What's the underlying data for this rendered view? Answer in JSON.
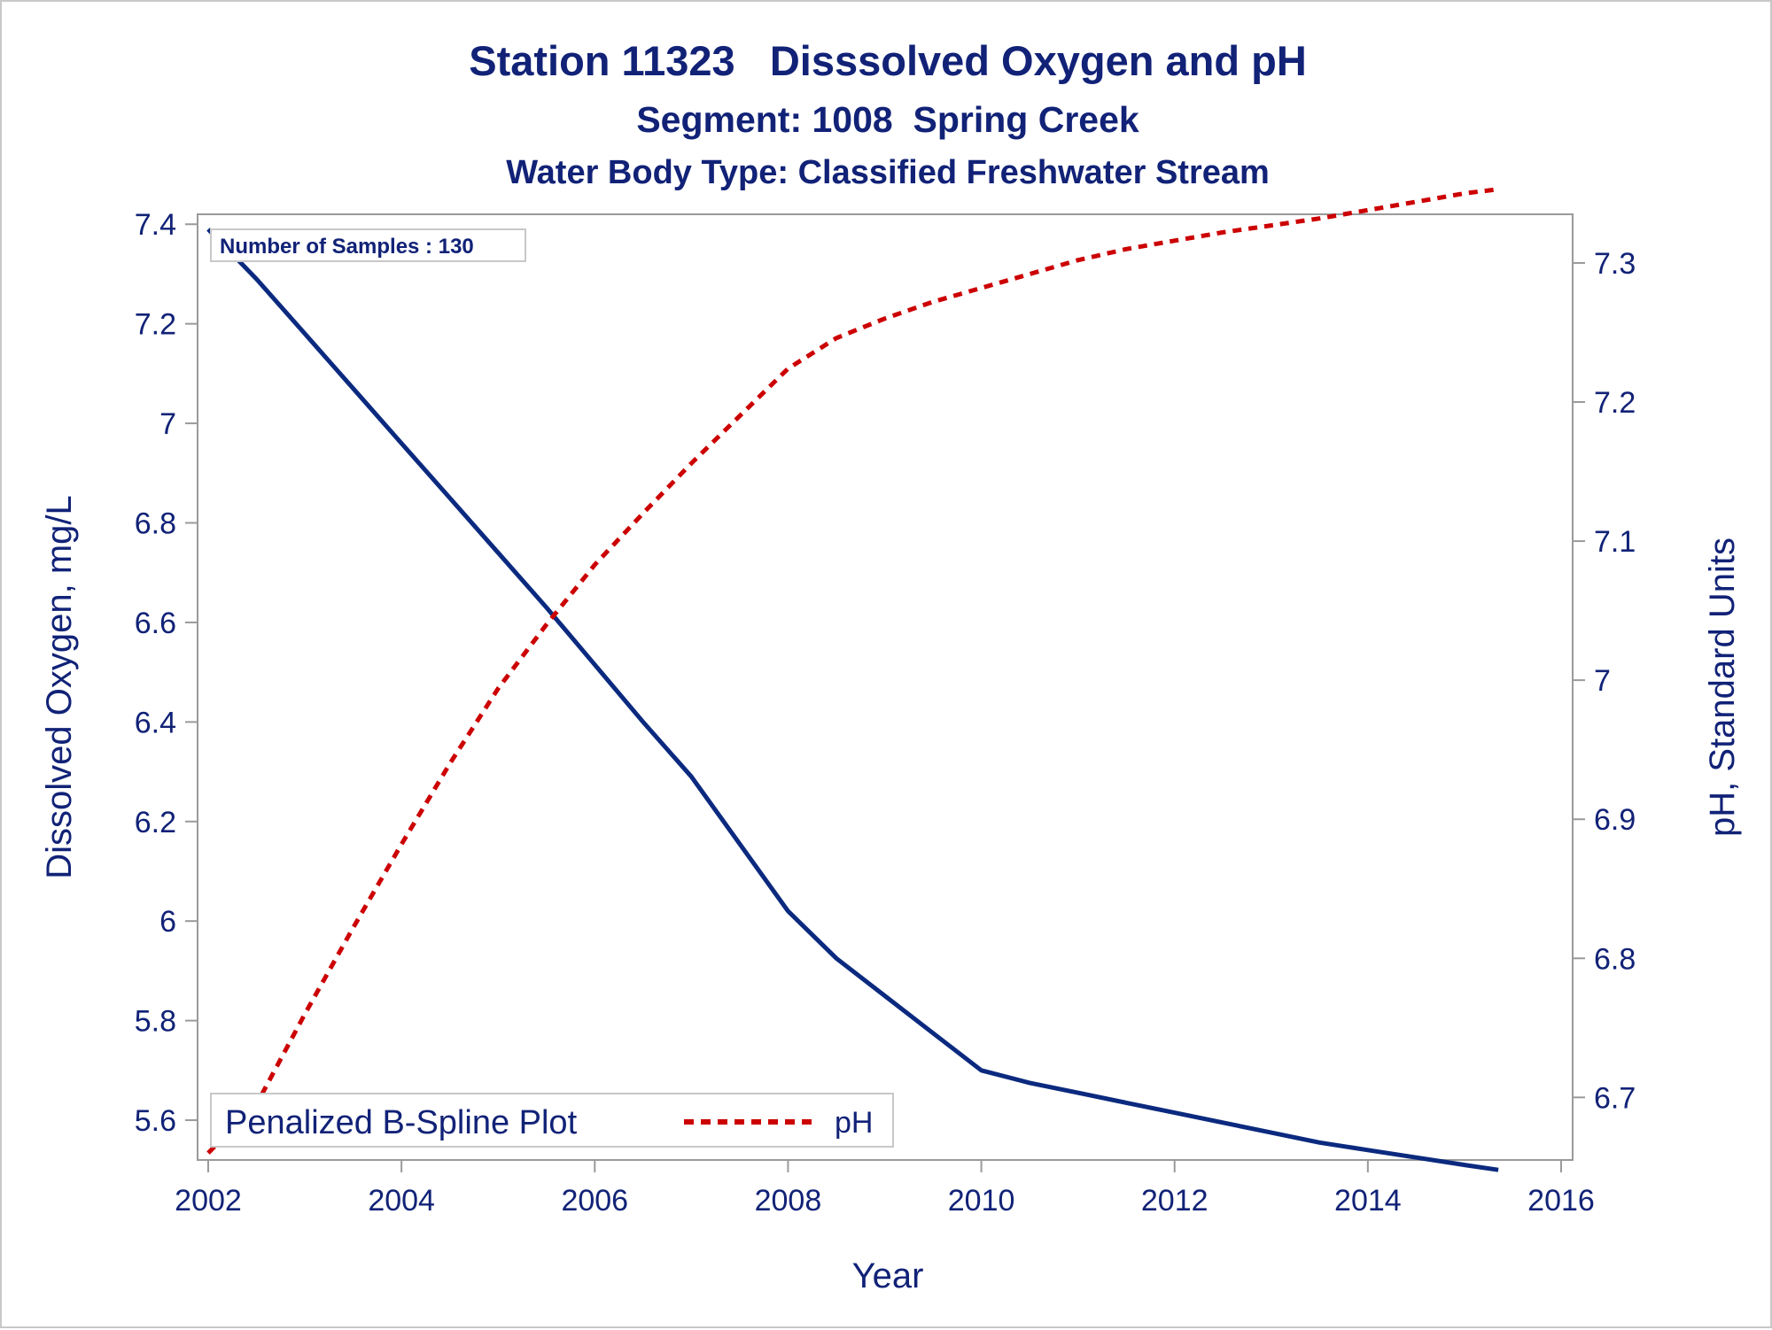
{
  "chart_data": {
    "type": "line",
    "title": "Station 11323   Disssolved Oxygen and pH",
    "subtitle": "Segment: 1008  Spring Creek",
    "subtitle2": "Water Body Type: Classified Freshwater Stream",
    "xlabel": "Year",
    "ylabel": "Dissolved Oxygen, mg/L",
    "y2label": "pH, Standard Units",
    "inset_label": "Number of Samples : 130",
    "legend_title": "Penalized B-Spline Plot",
    "legend_placement": "bottom-left",
    "grid": false,
    "xlim": [
      2002,
      2016
    ],
    "ylim": [
      5.52,
      7.42
    ],
    "y2lim": [
      6.655,
      7.335
    ],
    "x_ticks": [
      "2002",
      "2004",
      "2006",
      "2008",
      "2010",
      "2012",
      "2014",
      "2016"
    ],
    "y_ticks": [
      "5.6",
      "5.8",
      "6",
      "6.2",
      "6.4",
      "6.6",
      "6.8",
      "7",
      "7.2",
      "7.4"
    ],
    "y2_ticks": [
      "6.7",
      "6.8",
      "6.9",
      "7",
      "7.1",
      "7.2",
      "7.3"
    ],
    "series": [
      {
        "legend": false,
        "axis": "left",
        "color": "#0b2a7f",
        "style": "solid",
        "x": [
          2002.0,
          2002.5,
          2003.0,
          2003.5,
          2004.0,
          2004.5,
          2005.0,
          2005.5,
          2006.0,
          2006.5,
          2007.0,
          2007.5,
          2008.0,
          2008.5,
          2009.0,
          2009.5,
          2010.0,
          2010.5,
          2011.0,
          2011.5,
          2012.0,
          2012.5,
          2013.0,
          2013.5,
          2014.0,
          2014.5,
          2015.0,
          2015.35
        ],
        "y": [
          7.39,
          7.29,
          7.18,
          7.07,
          6.96,
          6.85,
          6.74,
          6.63,
          6.515,
          6.4,
          6.29,
          6.155,
          6.02,
          5.925,
          5.85,
          5.775,
          5.7,
          5.675,
          5.655,
          5.635,
          5.615,
          5.595,
          5.575,
          5.555,
          5.54,
          5.525,
          5.51,
          5.5
        ]
      },
      {
        "name": "pH",
        "axis": "right",
        "color": "#cc0000",
        "style": "dashed",
        "x": [
          2002.0,
          2002.5,
          2003.0,
          2003.5,
          2004.0,
          2004.5,
          2005.0,
          2005.5,
          2006.0,
          2006.5,
          2007.0,
          2007.5,
          2008.0,
          2008.5,
          2009.0,
          2009.5,
          2010.0,
          2010.5,
          2011.0,
          2011.5,
          2012.0,
          2012.5,
          2013.0,
          2013.5,
          2014.0,
          2014.5,
          2015.0,
          2015.35
        ],
        "y": [
          6.66,
          6.695,
          6.76,
          6.822,
          6.882,
          6.94,
          6.994,
          7.04,
          7.083,
          7.12,
          7.156,
          7.19,
          7.224,
          7.246,
          7.26,
          7.272,
          7.282,
          7.292,
          7.302,
          7.31,
          7.316,
          7.322,
          7.327,
          7.332,
          7.338,
          7.344,
          7.35,
          7.353
        ]
      }
    ]
  }
}
